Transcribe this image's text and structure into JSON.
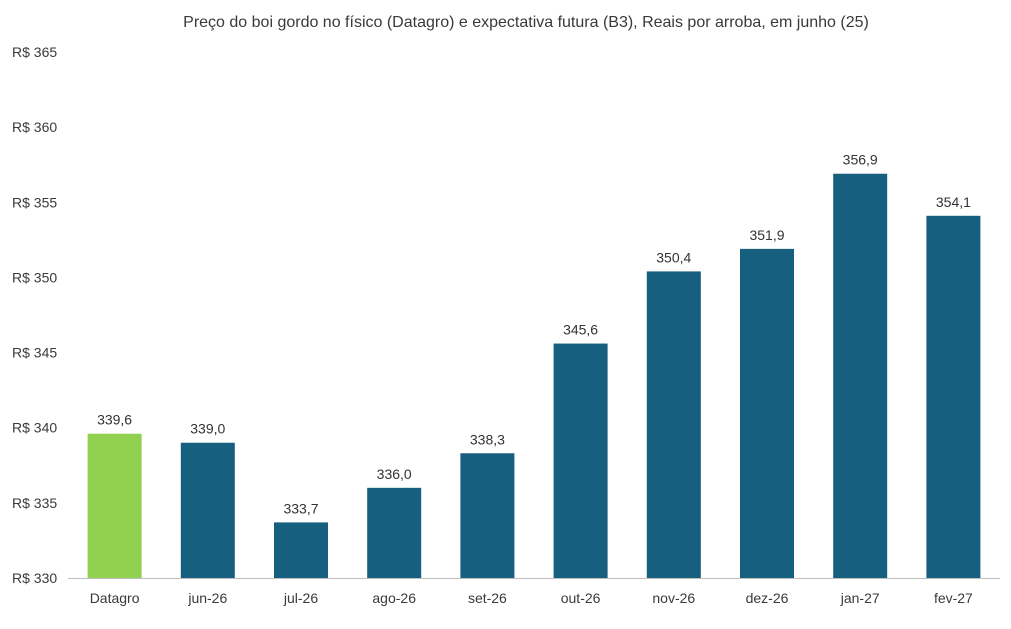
{
  "chart_data": {
    "type": "bar",
    "title": "Preço do boi gordo no físico (Datagro)  e expectativa futura (B3), Reais por arroba, em junho (25)",
    "xlabel": "",
    "ylabel": "",
    "categories": [
      "Datagro",
      "jun-26",
      "jul-26",
      "ago-26",
      "set-26",
      "out-26",
      "nov-26",
      "dez-26",
      "jan-27",
      "fev-27"
    ],
    "values": [
      339.6,
      339.0,
      333.7,
      336.0,
      338.3,
      345.6,
      350.4,
      351.9,
      356.9,
      354.1
    ],
    "value_labels": [
      "339,6",
      "339,0",
      "333,7",
      "336,0",
      "338,3",
      "345,6",
      "350,4",
      "351,9",
      "356,9",
      "354,1"
    ],
    "ylim": [
      330,
      365
    ],
    "yticks": [
      330,
      335,
      340,
      345,
      350,
      355,
      360,
      365
    ],
    "ytick_labels": [
      "R$ 330",
      "R$ 335",
      "R$ 340",
      "R$ 345",
      "R$ 350",
      "R$ 355",
      "R$ 360",
      "R$ 365"
    ],
    "grid": false,
    "legend": "none",
    "colors": {
      "highlight": "#92d050",
      "bar": "#175f7e",
      "axis": "#bfbfbf"
    }
  }
}
